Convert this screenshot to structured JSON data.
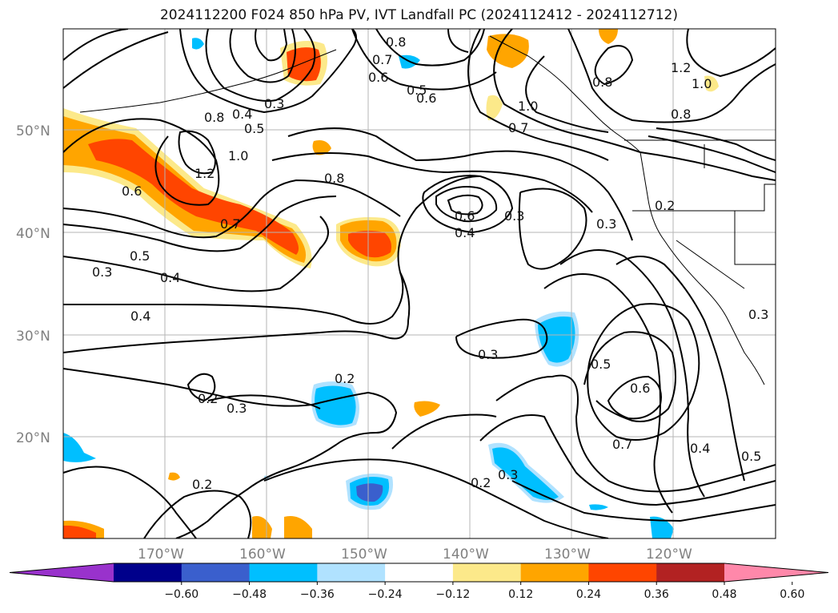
{
  "title": "2024112200 F024 850 hPa PV, IVT Landfall PC (2024112412 - 2024112712)",
  "lat_labels": [
    "50°N",
    "40°N",
    "30°N",
    "20°N"
  ],
  "lon_labels": [
    "170°W",
    "160°W",
    "150°W",
    "140°W",
    "130°W",
    "120°W"
  ],
  "contour_labels": [
    "0.8",
    "0.7",
    "0.6",
    "0.5",
    "0.6",
    "0.3",
    "0.4",
    "0.5",
    "0.8",
    "1.0",
    "1.2",
    "0.6",
    "1.0",
    "0.7",
    "0.8",
    "1.0",
    "1.2",
    "0.8",
    "0.6",
    "0.4",
    "0.3",
    "0.7",
    "0.5",
    "0.4",
    "0.3",
    "0.4",
    "0.2",
    "0.3",
    "0.2",
    "0.3",
    "0.2",
    "0.3",
    "0.2",
    "0.5",
    "0.6",
    "0.7",
    "0.4",
    "0.5",
    "0.3",
    "0.2",
    "0.3",
    "0.8"
  ],
  "colorbar": {
    "ticks": [
      "−0.60",
      "−0.48",
      "−0.36",
      "−0.24",
      "−0.12",
      "0.12",
      "0.24",
      "0.36",
      "0.48",
      "0.60"
    ],
    "colors": [
      "#9932cc",
      "#00008b",
      "#3a5fcd",
      "#00bfff",
      "#b0e2ff",
      "#ffffff",
      "#fce98a",
      "#ffa500",
      "#ff4500",
      "#b22222",
      "#ff88aa"
    ]
  },
  "colors": {
    "light_orange": "#fce98a",
    "orange": "#ffa500",
    "red_orange": "#ff4500",
    "sky_blue": "#00bfff",
    "light_blue": "#b0e2ff",
    "royal_blue": "#3a5fcd"
  }
}
